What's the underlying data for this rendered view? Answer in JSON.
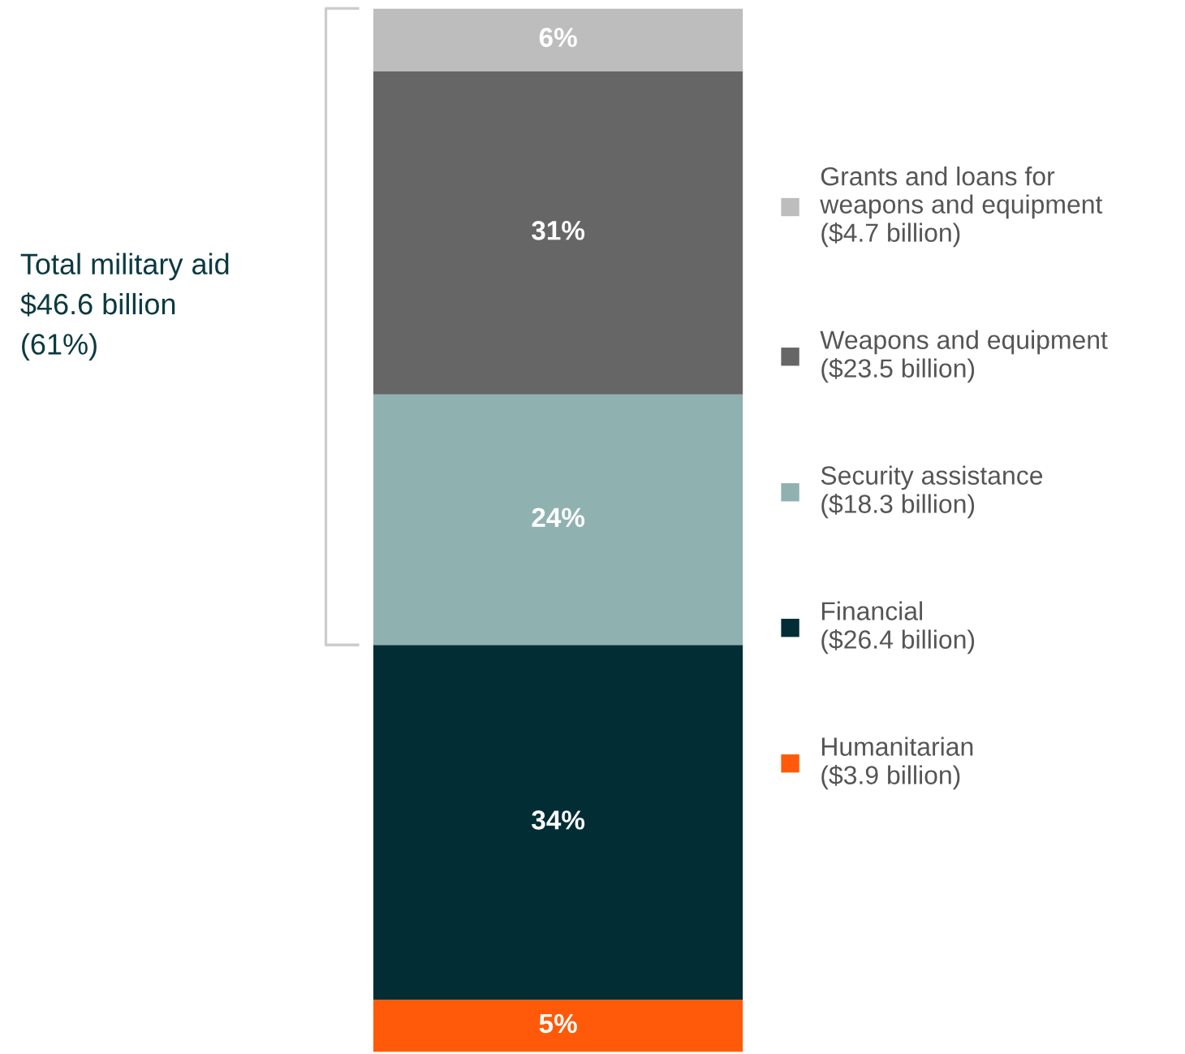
{
  "chart_data": {
    "type": "bar",
    "stacked": true,
    "categories": [
      null
    ],
    "series": [
      {
        "name": "Humanitarian\n($3.9 billion)",
        "color": "#ff5a0a",
        "values": [
          5
        ],
        "value_labels": [
          "5%"
        ]
      },
      {
        "name": "Financial\n($26.4 billion)",
        "color": "#022d35",
        "values": [
          34
        ],
        "value_labels": [
          "34%"
        ]
      },
      {
        "name": "Security assistance\n($18.3 billion)",
        "color": "#8fb2b1",
        "values": [
          24
        ],
        "value_labels": [
          "24%"
        ]
      },
      {
        "name": "Weapons and equipment\n($23.5 billion)",
        "color": "#666666",
        "values": [
          31
        ],
        "value_labels": [
          "31%"
        ]
      },
      {
        "name": "Grants and loans for\nweapons and equipment\n($4.7 billion)",
        "color": "#bdbdbd",
        "values": [
          6
        ],
        "value_labels": [
          "6%"
        ]
      }
    ],
    "annotations": [
      "Total military aid\n$46.6 billion\n(61%)"
    ],
    "legend": "right"
  }
}
